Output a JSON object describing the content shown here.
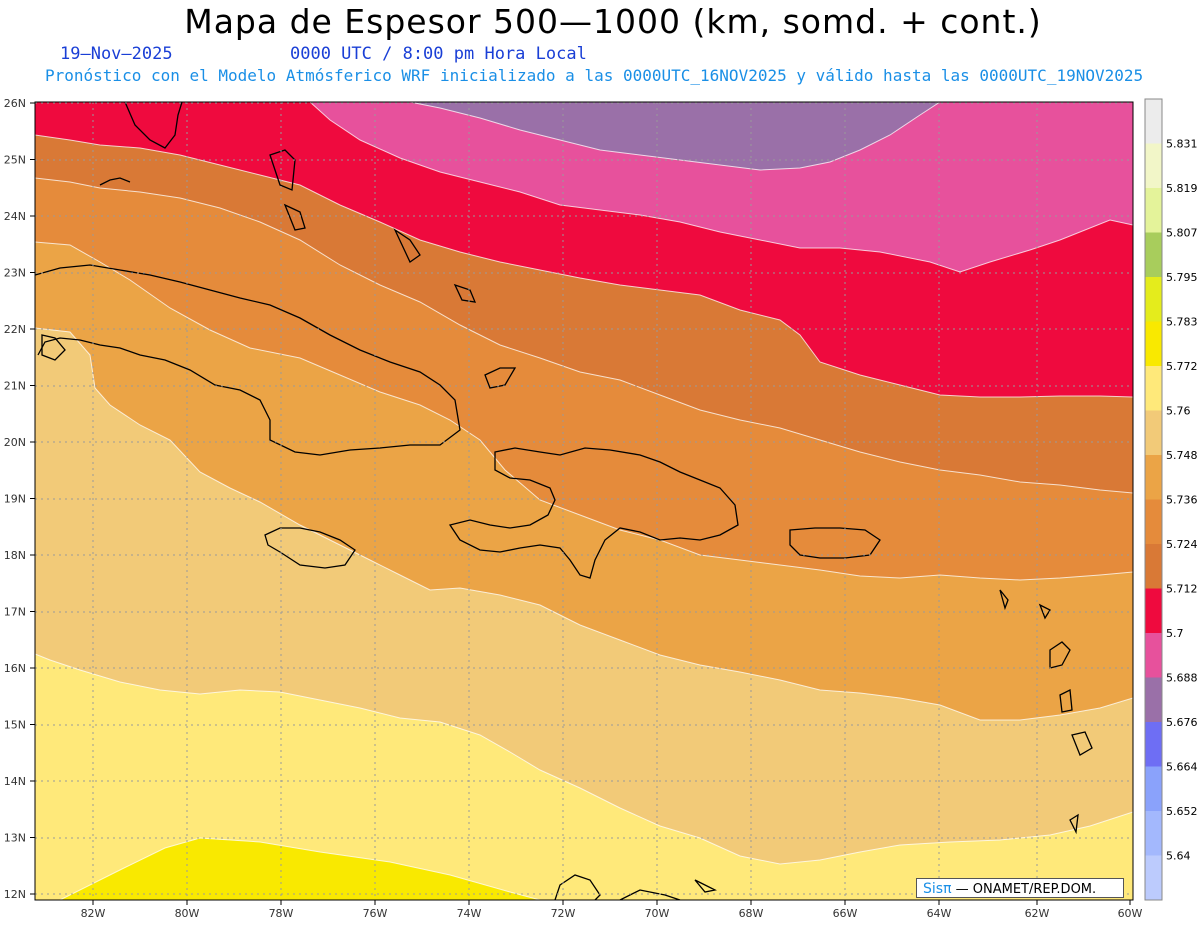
{
  "header": {
    "title": "Mapa de Espesor 500—1000 (km, somd. + cont.)",
    "date": "19—Nov—2025",
    "time": "0000 UTC / 8:00 pm Hora Local",
    "forecast": "Pronóstico con el Modelo Atmósferico WRF inicializado a las 0000UTC_16NOV2025 y válido hasta las  0000UTC_19NOV2025"
  },
  "axes": {
    "lon_labels": [
      "82W",
      "80W",
      "78W",
      "76W",
      "74W",
      "72W",
      "70W",
      "68W",
      "66W",
      "64W",
      "62W",
      "60W"
    ],
    "lat_labels": [
      "26N",
      "25N",
      "24N",
      "23N",
      "22N",
      "21N",
      "20N",
      "19N",
      "18N",
      "17N",
      "16N",
      "15N",
      "14N",
      "13N",
      "12N"
    ]
  },
  "legend": {
    "labels": [
      "5.831",
      "5.819",
      "5.807",
      "5.795",
      "5.783",
      "5.772",
      "5.76",
      "5.748",
      "5.736",
      "5.724",
      "5.712",
      "5.7",
      "5.688",
      "5.676",
      "5.664",
      "5.652",
      "5.64"
    ],
    "colors": [
      "#ececec",
      "#f2f6c8",
      "#e4f39a",
      "#a8cd5c",
      "#e4ec1c",
      "#f9e900",
      "#ffe97a",
      "#f2ca78",
      "#eba446",
      "#e58b3b",
      "#d97936",
      "#ef0a3e",
      "#e7519c",
      "#9a70a8",
      "#6e6ef4",
      "#8aa2fb",
      "#a3b8fd",
      "#bccbfd"
    ]
  },
  "badge": {
    "sis": "Sisπ",
    "org": " — ONAMET/REP.DOM."
  }
}
